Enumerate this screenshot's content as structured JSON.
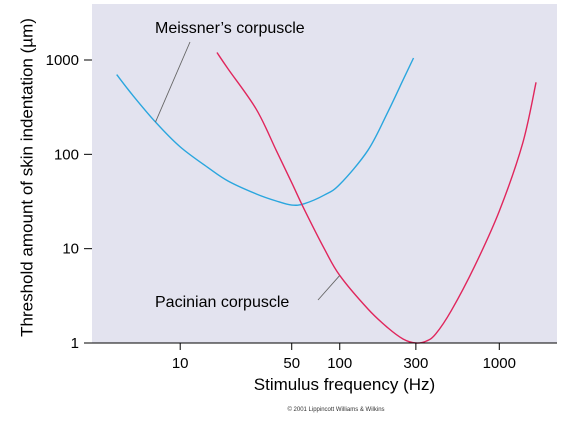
{
  "chart_data": {
    "type": "line",
    "xlabel": "Stimulus frequency (Hz)",
    "ylabel": "Threshold amount of skin indentation (µm)",
    "x_scale": "log",
    "y_scale": "log",
    "xlim": [
      2.8,
      2300
    ],
    "ylim": [
      1,
      6000
    ],
    "x_ticks": [
      10,
      50,
      100,
      300,
      1000
    ],
    "x_tick_labels": [
      "10",
      "50",
      "100",
      "300",
      "1000"
    ],
    "y_ticks": [
      1,
      10,
      100,
      1000
    ],
    "y_tick_labels": [
      "1",
      "10",
      "100",
      "1000"
    ],
    "background_color": "#e3e3ef",
    "grid": false,
    "legend": "none",
    "series": [
      {
        "name": "Meissner’s corpuscle",
        "color": "#2aa6de",
        "x": [
          4,
          5,
          7,
          10,
          15,
          20,
          30,
          40,
          50,
          60,
          80,
          100,
          150,
          200,
          250,
          290
        ],
        "y": [
          700,
          430,
          220,
          120,
          72,
          52,
          38,
          32,
          29,
          30,
          37,
          48,
          110,
          280,
          620,
          1050
        ]
      },
      {
        "name": "Pacinian corpuscle",
        "color": "#e0265c",
        "x": [
          17,
          20,
          30,
          40,
          50,
          60,
          80,
          100,
          150,
          200,
          250,
          300,
          350,
          400,
          500,
          700,
          1000,
          1400,
          1700
        ],
        "y": [
          1200,
          800,
          300,
          110,
          50,
          26,
          10,
          5.2,
          2.3,
          1.45,
          1.1,
          1.0,
          1.05,
          1.25,
          2.2,
          6.5,
          25,
          130,
          580
        ]
      }
    ],
    "annotations": [
      {
        "label": "Meissner’s corpuscle",
        "target": [
          7,
          220
        ]
      },
      {
        "label": "Pacinian corpuscle",
        "target": [
          100,
          5.2
        ]
      }
    ],
    "credit": "© 2001 Lippincott Williams & Wilkins"
  }
}
